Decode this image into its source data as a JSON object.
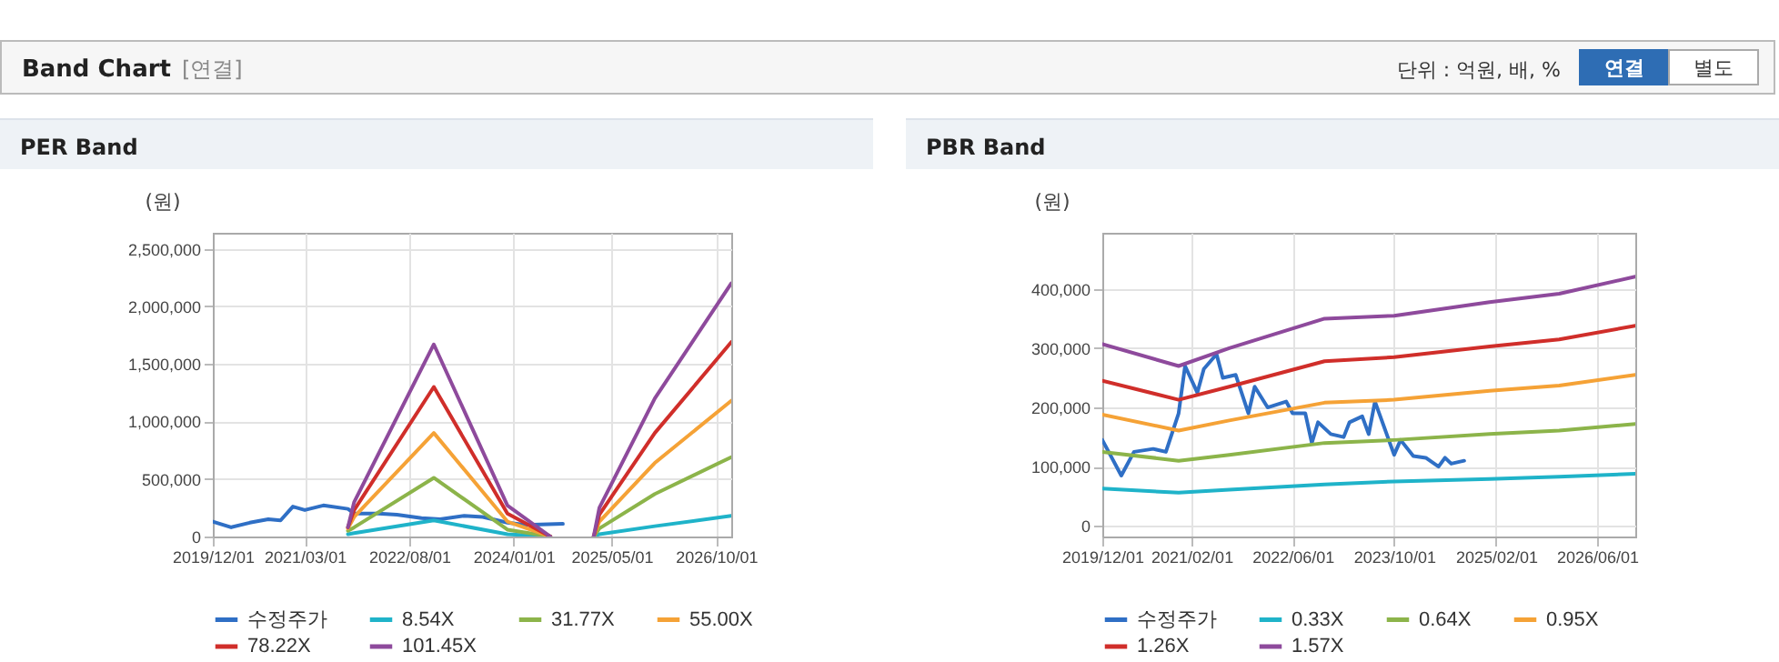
{
  "chart_data": [
    {
      "type": "other",
      "title": "Band Chart",
      "annotations": [
        "[연결]",
        "단위 : 억원, 배, %",
        "연결",
        "별도"
      ]
    },
    {
      "type": "line",
      "title": "PER Band",
      "ylabel": "(원)",
      "legend": "bottom",
      "grid": true,
      "marker": "none",
      "line_style": "solid",
      "xlim": [
        "2019-12-01",
        "2026-12-15"
      ],
      "ylim": [
        0,
        2640000
      ],
      "xticks": [
        {
          "value": "2019-12-01",
          "label": "2019/12/01"
        },
        {
          "value": "2021-03-01",
          "label": "2021/03/01"
        },
        {
          "value": "2022-08-01",
          "label": "2022/08/01"
        },
        {
          "value": "2024-01-01",
          "label": "2024/01/01"
        },
        {
          "value": "2025-05-01",
          "label": "2025/05/01"
        },
        {
          "value": "2026-10-01",
          "label": "2026/10/01"
        }
      ],
      "yticks": [
        0,
        {
          "value": 500000,
          "label": "500,000"
        },
        {
          "value": 1000000,
          "label": "1,000,000"
        },
        {
          "value": 1500000,
          "label": "1,500,000"
        },
        {
          "value": 2000000,
          "label": "2,000,000"
        },
        {
          "value": 2500000,
          "label": "2,500,000"
        }
      ],
      "x": [
        "2021-10",
        "2021-11",
        "2022-12",
        "2023-12",
        "2024-07",
        "2024-11",
        "2025-02",
        "2025-03",
        "2025-12",
        "2026-12-15"
      ],
      "series": [
        {
          "name": "수정주가",
          "color": "#2f6fc5",
          "x": [
            "2019-12",
            "2020-03",
            "2020-06",
            "2020-09",
            "2020-11",
            "2021-01",
            "2021-03",
            "2021-06",
            "2021-10",
            "2021-11",
            "2022-03",
            "2022-06",
            "2022-10",
            "2023-01",
            "2023-05",
            "2023-08",
            "2023-12",
            "2024-03",
            "2024-09"
          ],
          "values": [
            130000,
            80000,
            120000,
            150000,
            140000,
            260000,
            230000,
            270000,
            240000,
            200000,
            200000,
            190000,
            160000,
            150000,
            180000,
            170000,
            120000,
            100000,
            110000
          ]
        },
        {
          "name": "8.54X",
          "color": "#1fb3c9",
          "values": [
            20000,
            30000,
            140000,
            20000,
            0,
            null,
            0,
            20000,
            90000,
            180000
          ]
        },
        {
          "name": "31.77X",
          "color": "#8cb44a",
          "values": [
            50000,
            80000,
            510000,
            60000,
            0,
            null,
            0,
            70000,
            370000,
            690000
          ]
        },
        {
          "name": "55.00X",
          "color": "#f5a236",
          "values": [
            70000,
            170000,
            900000,
            130000,
            0,
            null,
            0,
            130000,
            640000,
            1180000
          ]
        },
        {
          "name": "78.22X",
          "color": "#d02e2a",
          "values": [
            80000,
            230000,
            1300000,
            200000,
            0,
            null,
            0,
            190000,
            900000,
            1690000
          ]
        },
        {
          "name": "101.45X",
          "color": "#8e4a9c",
          "values": [
            80000,
            300000,
            1670000,
            270000,
            0,
            null,
            0,
            250000,
            1200000,
            2200000
          ]
        }
      ]
    },
    {
      "type": "line",
      "title": "PBR Band",
      "ylabel": "(원)",
      "legend": "bottom",
      "grid": true,
      "marker": "none",
      "line_style": "solid",
      "xlim": [
        "2019-12-01",
        "2026-12-01"
      ],
      "ylim": [
        -18000,
        495000
      ],
      "xticks": [
        {
          "value": "2019-12-01",
          "label": "2019/12/01"
        },
        {
          "value": "2021-02-01",
          "label": "2021/02/01"
        },
        {
          "value": "2022-06-01",
          "label": "2022/06/01"
        },
        {
          "value": "2023-10-01",
          "label": "2023/10/01"
        },
        {
          "value": "2025-02-01",
          "label": "2025/02/01"
        },
        {
          "value": "2026-06-01",
          "label": "2026/06/01"
        }
      ],
      "yticks": [
        0,
        {
          "value": 100000,
          "label": "100,000"
        },
        {
          "value": 200000,
          "label": "200,000"
        },
        {
          "value": 300000,
          "label": "300,000"
        },
        {
          "value": 400000,
          "label": "400,000"
        }
      ],
      "x": [
        "2019-12",
        "2020-12",
        "2021-08",
        "2022-11",
        "2023-10",
        "2025-01",
        "2025-12",
        "2026-12"
      ],
      "series": [
        {
          "name": "수정주가",
          "color": "#2f6fc5",
          "x": [
            "2019-12",
            "2020-03",
            "2020-05",
            "2020-08",
            "2020-10",
            "2020-12",
            "2021-01",
            "2021-03",
            "2021-04",
            "2021-06",
            "2021-07",
            "2021-09",
            "2021-11",
            "2021-12",
            "2022-02",
            "2022-05",
            "2022-06",
            "2022-08",
            "2022-09",
            "2022-10",
            "2022-12",
            "2023-02",
            "2023-03",
            "2023-05",
            "2023-06",
            "2023-07",
            "2023-10",
            "2023-11",
            "2024-01",
            "2024-03",
            "2024-05",
            "2024-06",
            "2024-07",
            "2024-09"
          ],
          "values": [
            145000,
            85000,
            125000,
            130000,
            125000,
            190000,
            270000,
            225000,
            265000,
            290000,
            250000,
            255000,
            190000,
            235000,
            200000,
            210000,
            190000,
            190000,
            140000,
            175000,
            155000,
            150000,
            175000,
            185000,
            155000,
            210000,
            120000,
            145000,
            118000,
            115000,
            100000,
            115000,
            105000,
            110000
          ]
        },
        {
          "name": "0.33X",
          "color": "#1fb3c9",
          "values": [
            63000,
            56000,
            61000,
            70000,
            75000,
            79000,
            83000,
            88000
          ]
        },
        {
          "name": "0.64X",
          "color": "#8cb44a",
          "values": [
            125000,
            110000,
            120000,
            140000,
            145000,
            155000,
            161000,
            172000
          ]
        },
        {
          "name": "0.95X",
          "color": "#f5a236",
          "values": [
            188000,
            161000,
            178000,
            208000,
            213000,
            228000,
            237000,
            255000
          ]
        },
        {
          "name": "1.26X",
          "color": "#d02e2a",
          "values": [
            245000,
            213000,
            235000,
            278000,
            285000,
            303000,
            315000,
            338000
          ]
        },
        {
          "name": "1.57X",
          "color": "#8e4a9c",
          "values": [
            307000,
            270000,
            300000,
            350000,
            355000,
            378000,
            392000,
            421000
          ]
        }
      ]
    }
  ]
}
